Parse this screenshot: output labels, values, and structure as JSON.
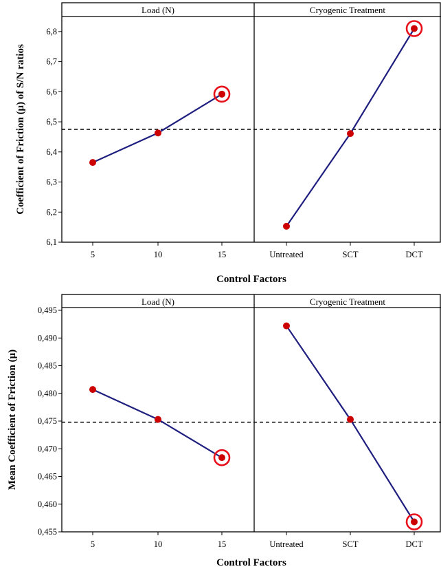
{
  "chart_data": [
    {
      "type": "line",
      "ylabel": "Coefficient of Friction (μ) of S/N ratios",
      "xlabel": "Control Factors",
      "ylim": [
        6.1,
        6.85
      ],
      "yticks": [
        "6,1",
        "6,2",
        "6,3",
        "6,4",
        "6,5",
        "6,6",
        "6,7",
        "6,8"
      ],
      "ytick_values": [
        6.1,
        6.2,
        6.3,
        6.4,
        6.5,
        6.6,
        6.7,
        6.8
      ],
      "mean_line": 6.475,
      "panels": [
        {
          "title": "Load (N)",
          "categories": [
            "5",
            "10",
            "15"
          ],
          "values": [
            6.365,
            6.463,
            6.592
          ],
          "highlight_index": 2
        },
        {
          "title": "Cryogenic Treatment",
          "categories": [
            "Untreated",
            "SCT",
            "DCT"
          ],
          "values": [
            6.153,
            6.461,
            6.81
          ],
          "highlight_index": 2
        }
      ],
      "line_color": "#1f1f80",
      "marker_color": "#cc0000",
      "highlight_color": "#e8101a"
    },
    {
      "type": "line",
      "ylabel": "Mean Coefficient of Friction (μ)",
      "xlabel": "Control Factors",
      "ylim": [
        0.455,
        0.4955
      ],
      "yticks": [
        "0,455",
        "0,460",
        "0,465",
        "0,470",
        "0,475",
        "0,480",
        "0,485",
        "0,490",
        "0,495"
      ],
      "ytick_values": [
        0.455,
        0.46,
        0.465,
        0.47,
        0.475,
        0.48,
        0.485,
        0.49,
        0.495
      ],
      "mean_line": 0.4748,
      "panels": [
        {
          "title": "Load (N)",
          "categories": [
            "5",
            "10",
            "15"
          ],
          "values": [
            0.4807,
            0.4753,
            0.4684
          ],
          "highlight_index": 2
        },
        {
          "title": "Cryogenic Treatment",
          "categories": [
            "Untreated",
            "SCT",
            "DCT"
          ],
          "values": [
            0.4922,
            0.4753,
            0.4568
          ],
          "highlight_index": 2
        }
      ],
      "line_color": "#1f1f80",
      "marker_color": "#cc0000",
      "highlight_color": "#e8101a"
    }
  ]
}
